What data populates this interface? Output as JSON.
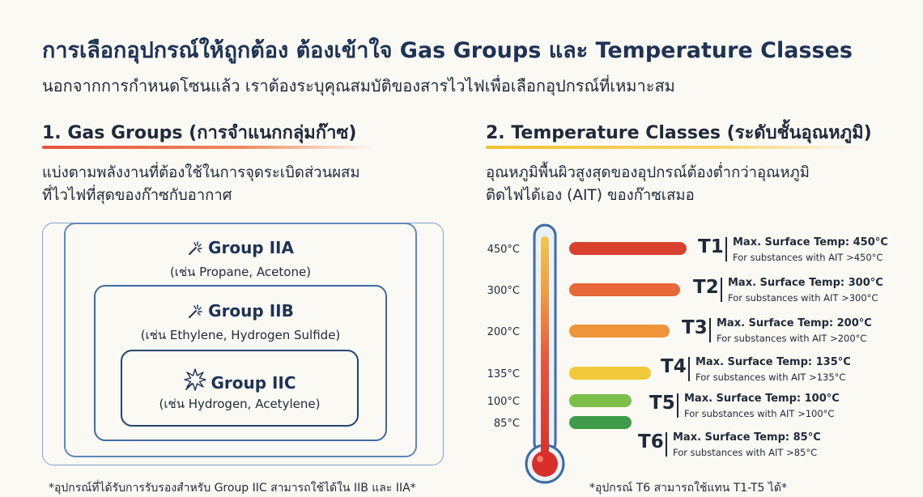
{
  "header": {
    "title": "การเลือกอุปกรณ์ให้ถูกต้อง ต้องเข้าใจ Gas Groups และ Temperature Classes",
    "subtitle": "นอกจากการกำหนดโซนแล้ว เราต้องระบุคุณสมบัติของสารไวไฟเพื่อเลือกอุปกรณ์ที่เหมาะสม"
  },
  "gas_groups": {
    "heading": "1. Gas Groups (การจำแนกกลุ่มก๊าซ)",
    "accent_color": "#e4533c",
    "description_line1": "แบ่งตามพลังงานที่ต้องใช้ในการจุดระเบิดส่วนผสม",
    "description_line2": "ที่ไวไฟที่สุดของก๊าซกับอากาศ",
    "groups": [
      {
        "name": "Group IIA",
        "example": "(เช่น Propane, Acetone)",
        "icon": "spark-icon"
      },
      {
        "name": "Group IIB",
        "example": "(เช่น Ethylene, Hydrogen Sulfide)",
        "icon": "spark-icon"
      },
      {
        "name": "Group IIC",
        "example": "(เช่น Hydrogen, Acetylene)",
        "icon": "explosion-icon"
      }
    ],
    "footnote": "*อุปกรณ์ที่ได้รับการรับรองสำหรับ Group IIC สามารถใช้ได้ใน IIB และ IIA*"
  },
  "temperature_classes": {
    "heading": "2. Temperature Classes (ระดับชั้นอุณหภูมิ)",
    "accent_color": "#f2c230",
    "description_line1": "อุณหภูมิพื้นผิวสูงสุดของอุปกรณ์ต้องต่ำกว่าอุณหภูมิ",
    "description_line2": "ติดไฟได้เอง (AIT) ของก๊าซเสมอ",
    "thermometer_scale": [
      "450°C",
      "300°C",
      "200°C",
      "135°C",
      "100°C",
      "85°C"
    ],
    "classes": [
      {
        "class": "T1",
        "max": "Max. Surface Temp: 450°C",
        "sub": "For substances with AIT >450°C",
        "color": "#d9412e"
      },
      {
        "class": "T2",
        "max": "Max. Surface Temp: 300°C",
        "sub": "For substances with AIT >300°C",
        "color": "#e8683a"
      },
      {
        "class": "T3",
        "max": "Max. Surface Temp: 200°C",
        "sub": "For substances with AIT >200°C",
        "color": "#ef9438"
      },
      {
        "class": "T4",
        "max": "Max. Surface Temp: 135°C",
        "sub": "For substances with AIT >135°C",
        "color": "#f1c93a"
      },
      {
        "class": "T5",
        "max": "Max. Surface Temp: 100°C",
        "sub": "For substances with AIT >100°C",
        "color": "#7cbf4a"
      },
      {
        "class": "T6",
        "max": "Max. Surface Temp: 85°C",
        "sub": "For substances with AIT >85°C",
        "color": "#3f9b4a"
      }
    ],
    "footnote": "*อุปกรณ์ T6 สามารถใช้แทน T1-T5 ได้*"
  }
}
